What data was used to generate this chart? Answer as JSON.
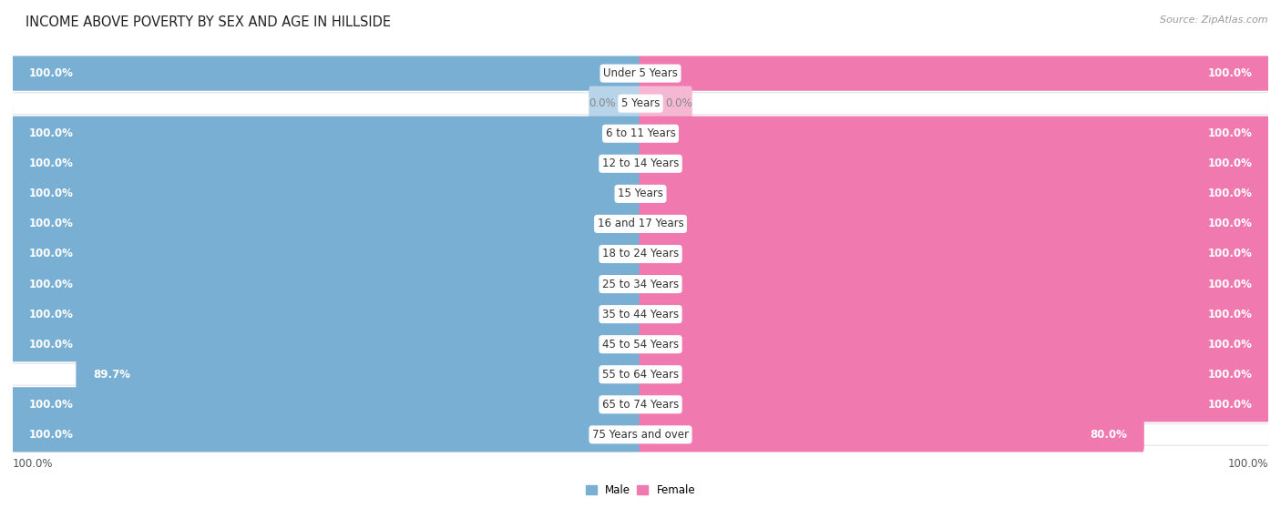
{
  "title": "INCOME ABOVE POVERTY BY SEX AND AGE IN HILLSIDE",
  "source": "Source: ZipAtlas.com",
  "categories": [
    "Under 5 Years",
    "5 Years",
    "6 to 11 Years",
    "12 to 14 Years",
    "15 Years",
    "16 and 17 Years",
    "18 to 24 Years",
    "25 to 34 Years",
    "35 to 44 Years",
    "45 to 54 Years",
    "55 to 64 Years",
    "65 to 74 Years",
    "75 Years and over"
  ],
  "male": [
    100.0,
    0.0,
    100.0,
    100.0,
    100.0,
    100.0,
    100.0,
    100.0,
    100.0,
    100.0,
    89.7,
    100.0,
    100.0
  ],
  "female": [
    100.0,
    0.0,
    100.0,
    100.0,
    100.0,
    100.0,
    100.0,
    100.0,
    100.0,
    100.0,
    100.0,
    100.0,
    80.0
  ],
  "male_color": "#7aafd4",
  "female_color": "#f07ab0",
  "male_color_zero": "#b8d4e8",
  "female_color_zero": "#f5b8d3",
  "bg_color": "#e8e8e8",
  "bar_height": 0.68,
  "max_val": 100.0,
  "legend_male": "Male",
  "legend_female": "Female",
  "title_fontsize": 10.5,
  "label_fontsize": 8.5,
  "category_fontsize": 8.5,
  "source_fontsize": 8.0,
  "axis_label_fontsize": 8.5
}
